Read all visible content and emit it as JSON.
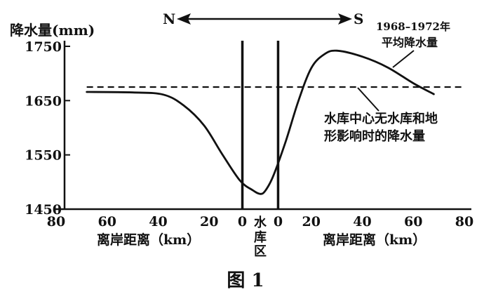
{
  "chart_data": {
    "type": "line",
    "ylabel": "降水量(mm)",
    "ylim": [
      1450,
      1750
    ],
    "yticks": [
      1450,
      1550,
      1650,
      1750
    ],
    "ytick_labels": [
      "1450",
      "1550",
      "1650",
      "1750"
    ],
    "xlim": [
      -80,
      80
    ],
    "xticks": [
      -80,
      -60,
      -40,
      -20,
      0,
      20,
      40,
      60,
      80
    ],
    "xtick_labels_left": [
      "80",
      "60",
      "40",
      "20",
      "0"
    ],
    "xtick_labels_right": [
      "0",
      "20",
      "40",
      "60",
      "80"
    ],
    "xlabel_left": "离岸距离（km）",
    "xlabel_right": "离岸距离（km）",
    "reservoir_label": "水库区",
    "reservoir_x": [
      -7,
      7
    ],
    "direction": {
      "north": "N",
      "south": "S"
    },
    "series": [
      {
        "name": "1968–1972年平均降水量",
        "style": "solid",
        "x": [
          -68,
          -50,
          -38,
          -30,
          -22,
          -15,
          -8,
          -3,
          0,
          2,
          5,
          10,
          15,
          20,
          25,
          30,
          40,
          50,
          60,
          68
        ],
        "y": [
          1666,
          1665,
          1661,
          1641,
          1604,
          1552,
          1503,
          1485,
          1478,
          1484,
          1510,
          1575,
          1650,
          1710,
          1735,
          1742,
          1731,
          1711,
          1682,
          1662
        ]
      },
      {
        "name": "水库中心无水库和地形影响时的降水量",
        "style": "dashed",
        "x": [
          -68,
          80
        ],
        "y": [
          1675,
          1675
        ]
      }
    ],
    "annotations": {
      "solid_line": [
        "1968–1972年",
        "平均降水量"
      ],
      "dashed_line": [
        "水库中心无水库和地",
        "形影响时的降水量"
      ]
    },
    "caption": "图 1"
  }
}
